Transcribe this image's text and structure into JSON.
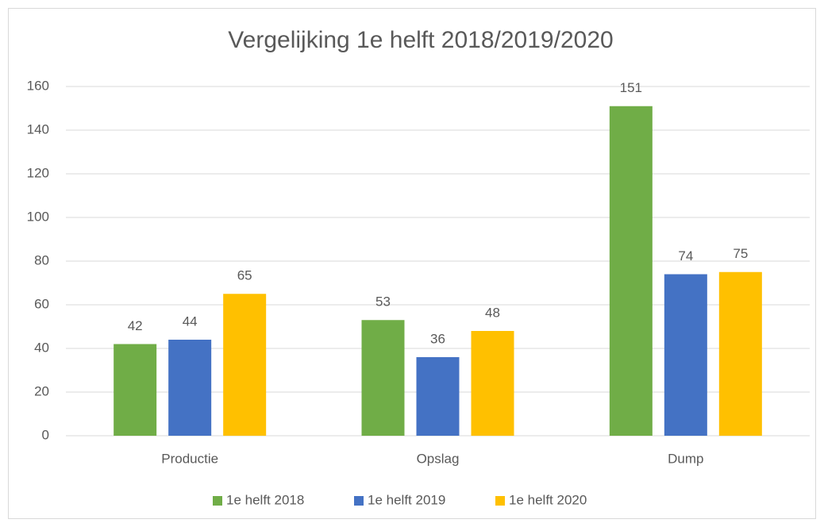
{
  "chart_data": {
    "type": "bar",
    "title": "Vergelijking 1e helft 2018/2019/2020",
    "categories": [
      "Productie",
      "Opslag",
      "Dump"
    ],
    "series": [
      {
        "name": "1e helft 2018",
        "color": "#70ad47",
        "values": [
          42,
          53,
          151
        ]
      },
      {
        "name": "1e helft 2019",
        "color": "#4472c4",
        "values": [
          44,
          36,
          74
        ]
      },
      {
        "name": "1e helft 2020",
        "color": "#ffc000",
        "values": [
          65,
          48,
          75
        ]
      }
    ],
    "ylim": [
      0,
      160
    ],
    "yticks": [
      0,
      20,
      40,
      60,
      80,
      100,
      120,
      140,
      160
    ],
    "grid": true,
    "legend": "bottom",
    "data_labels": true
  }
}
